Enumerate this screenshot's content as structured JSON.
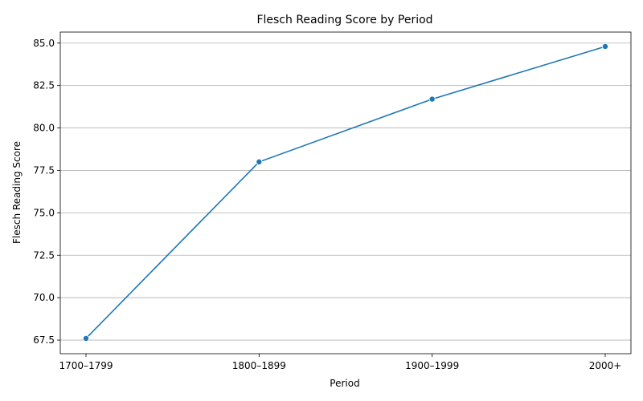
{
  "chart_data": {
    "type": "line",
    "title": "Flesch Reading Score by Period",
    "xlabel": "Period",
    "ylabel": "Flesch Reading Score",
    "categories": [
      "1700–1799",
      "1800–1899",
      "1900–1999",
      "2000+"
    ],
    "series": [
      {
        "values": [
          67.6,
          78.0,
          81.7,
          84.8
        ]
      }
    ],
    "ylim": [
      66.7,
      85.65
    ],
    "yticks": [
      "67.5",
      "70.0",
      "72.5",
      "75.0",
      "77.5",
      "80.0",
      "82.5",
      "85.0"
    ],
    "grid": "horizontal",
    "line_color": "#1f77b4",
    "grid_color": "#b0b0b0",
    "marker": "circle"
  }
}
